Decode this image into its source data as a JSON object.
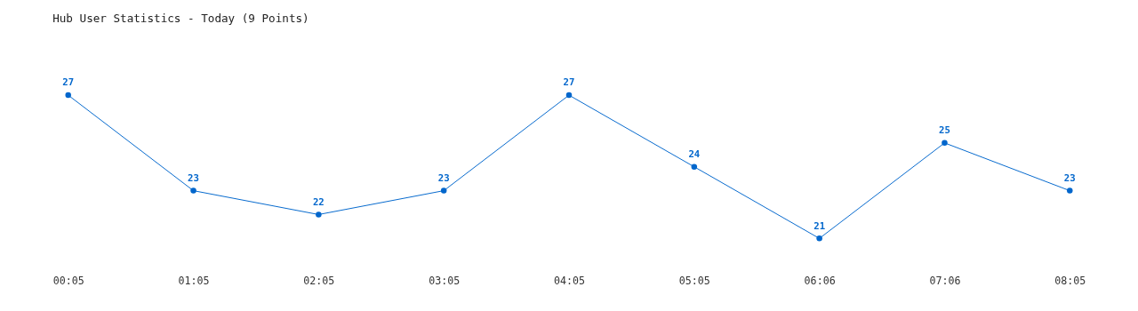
{
  "chart_data": {
    "type": "line",
    "title": "Hub User Statistics - Today (9 Points)",
    "categories": [
      "00:05",
      "01:05",
      "02:05",
      "03:05",
      "04:05",
      "05:05",
      "06:06",
      "07:06",
      "08:05"
    ],
    "series": [
      {
        "color": "#0066cc",
        "values": [
          27,
          23,
          22,
          23,
          27,
          24,
          21,
          25,
          23
        ]
      }
    ],
    "data_labels": true,
    "marker": "circle",
    "line_style": "solid",
    "grid": false,
    "tick_labels": "x"
  }
}
